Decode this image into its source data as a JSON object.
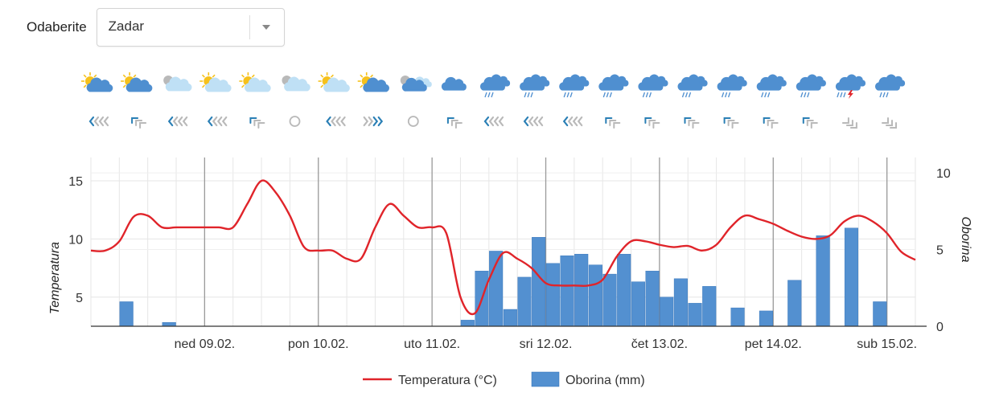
{
  "selector": {
    "label": "Odaberite",
    "value": "Zadar"
  },
  "colors": {
    "temperature": "#e0242a",
    "precipitation": "#5390d0",
    "precip_edge": "#2f6fb6",
    "sun": "#f6c11b",
    "cloud_light": "#bfe0f5",
    "cloud_dark": "#4f8fd0",
    "cloud_grey": "#b9b9b9",
    "arrow_blue": "#2a7fb5",
    "arrow_grey": "#b9b9b9",
    "lightning": "#e0242a"
  },
  "forecast_icons": [
    {
      "weather": "partly-cloudy-dark-icon",
      "wind": "wind-left-icon"
    },
    {
      "weather": "partly-cloudy-dark-icon",
      "wind": "wind-upleft-icon"
    },
    {
      "weather": "night-cloudy-icon",
      "wind": "wind-left-icon"
    },
    {
      "weather": "partly-cloudy-light-icon",
      "wind": "wind-left-icon"
    },
    {
      "weather": "partly-cloudy-light-icon",
      "wind": "wind-upleft-icon"
    },
    {
      "weather": "night-cloudy-icon",
      "wind": "calm-icon"
    },
    {
      "weather": "partly-cloudy-light-icon",
      "wind": "wind-left-icon"
    },
    {
      "weather": "partly-cloudy-dark-icon",
      "wind": "wind-right-icon"
    },
    {
      "weather": "night-cloudy-dark-icon",
      "wind": "calm-icon"
    },
    {
      "weather": "cloudy-icon",
      "wind": "wind-upleft-icon"
    },
    {
      "weather": "rain-icon",
      "wind": "wind-left-icon"
    },
    {
      "weather": "rain-icon",
      "wind": "wind-left-icon"
    },
    {
      "weather": "rain-icon",
      "wind": "wind-left-icon"
    },
    {
      "weather": "rain-icon",
      "wind": "wind-upleft-icon"
    },
    {
      "weather": "rain-icon",
      "wind": "wind-upleft-icon"
    },
    {
      "weather": "rain-icon",
      "wind": "wind-upleft-icon"
    },
    {
      "weather": "rain-icon",
      "wind": "wind-upleft-icon"
    },
    {
      "weather": "rain-icon",
      "wind": "wind-upleft-icon"
    },
    {
      "weather": "rain-icon",
      "wind": "wind-upleft-icon"
    },
    {
      "weather": "thunderstorm-icon",
      "wind": "wind-upright-icon"
    },
    {
      "weather": "rain-icon",
      "wind": "wind-upright-icon"
    }
  ],
  "chart_data": {
    "type": "bar+line",
    "x_unit": "hour",
    "x_range": [
      0,
      174
    ],
    "categories": [
      "ned 09.02.",
      "pon 10.02.",
      "uto 11.02.",
      "sri 12.02.",
      "čet 13.02.",
      "pet 14.02.",
      "sub 15.02."
    ],
    "day_tick_hours": [
      24,
      48,
      72,
      96,
      120,
      144,
      168
    ],
    "y_left": {
      "label": "Temperatura",
      "ticks": [
        5,
        10,
        15
      ],
      "range": [
        2.5,
        17
      ]
    },
    "y_right": {
      "label": "Oborina",
      "ticks": [
        0,
        5,
        10
      ],
      "range": [
        0,
        11
      ]
    },
    "grid": true,
    "legend_position": "bottom-center",
    "series": [
      {
        "name": "Temperatura (°C)",
        "type": "line",
        "axis": "left",
        "points": [
          [
            0,
            9
          ],
          [
            3,
            9
          ],
          [
            6,
            9.8
          ],
          [
            9,
            11.9
          ],
          [
            12,
            12
          ],
          [
            15,
            11
          ],
          [
            18,
            11
          ],
          [
            21,
            11
          ],
          [
            24,
            11
          ],
          [
            27,
            11
          ],
          [
            30,
            11
          ],
          [
            33,
            13
          ],
          [
            36,
            15
          ],
          [
            39,
            14
          ],
          [
            42,
            12
          ],
          [
            45,
            9.3
          ],
          [
            48,
            9
          ],
          [
            51,
            9
          ],
          [
            54,
            8.3
          ],
          [
            57,
            8.3
          ],
          [
            60,
            11
          ],
          [
            63,
            13
          ],
          [
            66,
            12
          ],
          [
            69,
            11
          ],
          [
            72,
            11
          ],
          [
            75,
            10.5
          ],
          [
            78,
            5
          ],
          [
            81,
            3.6
          ],
          [
            84,
            6.5
          ],
          [
            87,
            8.8
          ],
          [
            90,
            8.3
          ],
          [
            93,
            7.5
          ],
          [
            96,
            6.2
          ],
          [
            99,
            6
          ],
          [
            102,
            6
          ],
          [
            105,
            6
          ],
          [
            108,
            6.5
          ],
          [
            111,
            8.5
          ],
          [
            114,
            9.8
          ],
          [
            117,
            9.8
          ],
          [
            120,
            9.5
          ],
          [
            123,
            9.3
          ],
          [
            126,
            9.4
          ],
          [
            129,
            9
          ],
          [
            132,
            9.5
          ],
          [
            135,
            11
          ],
          [
            138,
            12
          ],
          [
            141,
            11.7
          ],
          [
            144,
            11.3
          ],
          [
            147,
            10.7
          ],
          [
            150,
            10.2
          ],
          [
            153,
            10
          ],
          [
            156,
            10.3
          ],
          [
            159,
            11.5
          ],
          [
            162,
            12
          ],
          [
            165,
            11.5
          ],
          [
            168,
            10.5
          ],
          [
            171,
            8.9
          ],
          [
            174,
            8.2
          ]
        ]
      },
      {
        "name": "Oborina (mm)",
        "type": "bar",
        "axis": "right",
        "bar_hours": 3,
        "points": [
          [
            6,
            1.6
          ],
          [
            15,
            0.25
          ],
          [
            78,
            0.4
          ],
          [
            81,
            3.6
          ],
          [
            84,
            4.9
          ],
          [
            87,
            1.1
          ],
          [
            90,
            3.2
          ],
          [
            93,
            5.8
          ],
          [
            96,
            4.1
          ],
          [
            99,
            4.6
          ],
          [
            102,
            4.7
          ],
          [
            105,
            4
          ],
          [
            108,
            3.4
          ],
          [
            111,
            4.7
          ],
          [
            114,
            2.9
          ],
          [
            117,
            3.6
          ],
          [
            120,
            1.9
          ],
          [
            123,
            3.1
          ],
          [
            126,
            1.5
          ],
          [
            129,
            2.6
          ],
          [
            135,
            1.2
          ],
          [
            141,
            1
          ],
          [
            147,
            3
          ],
          [
            153,
            5.9
          ],
          [
            159,
            6.4
          ],
          [
            165,
            1.6
          ]
        ]
      }
    ]
  }
}
